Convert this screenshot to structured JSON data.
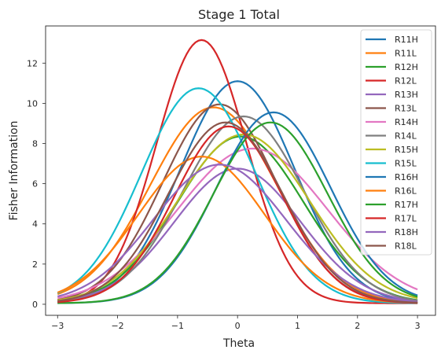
{
  "chart_data": {
    "type": "line",
    "title": "Stage 1 Total",
    "xlabel": "Theta",
    "ylabel": "Fisher Information",
    "xlim": [
      -3.2,
      3.3
    ],
    "ylim": [
      -0.55,
      13.85
    ],
    "xticks": [
      -3,
      -2,
      -1,
      0,
      1,
      2,
      3
    ],
    "yticks": [
      0,
      2,
      4,
      6,
      8,
      10,
      12
    ],
    "grid": false,
    "legend_position": "top-right",
    "x_range": [
      -3,
      3
    ],
    "series": [
      {
        "name": "R11H",
        "color": "#1f77b4",
        "peak": 11.05,
        "mu": 0.0,
        "sigma": 0.95
      },
      {
        "name": "R11L",
        "color": "#ff7f0e",
        "peak": 9.75,
        "mu": -0.4,
        "sigma": 1.05
      },
      {
        "name": "R12H",
        "color": "#2ca02c",
        "peak": 8.3,
        "mu": 0.05,
        "sigma": 1.05
      },
      {
        "name": "R12L",
        "color": "#d62728",
        "peak": 13.1,
        "mu": -0.6,
        "sigma": 0.75
      },
      {
        "name": "R13H",
        "color": "#9467bd",
        "peak": 6.7,
        "mu": 0.0,
        "sigma": 1.05
      },
      {
        "name": "R13L",
        "color": "#8c564b",
        "peak": 9.9,
        "mu": -0.3,
        "sigma": 0.95
      },
      {
        "name": "R14H",
        "color": "#e377c2",
        "peak": 7.7,
        "mu": 0.25,
        "sigma": 1.25
      },
      {
        "name": "R14L",
        "color": "#7f7f7f",
        "peak": 9.3,
        "mu": 0.1,
        "sigma": 1.0
      },
      {
        "name": "R15H",
        "color": "#bcbd22",
        "peak": 8.4,
        "mu": 0.1,
        "sigma": 1.1
      },
      {
        "name": "R15L",
        "color": "#17becf",
        "peak": 10.7,
        "mu": -0.65,
        "sigma": 0.95
      },
      {
        "name": "R16H",
        "color": "#1f77b4",
        "peak": 9.5,
        "mu": 0.6,
        "sigma": 0.95
      },
      {
        "name": "R16L",
        "color": "#ff7f0e",
        "peak": 7.3,
        "mu": -0.6,
        "sigma": 1.05
      },
      {
        "name": "R17H",
        "color": "#2ca02c",
        "peak": 9.0,
        "mu": 0.55,
        "sigma": 0.95
      },
      {
        "name": "R17L",
        "color": "#d62728",
        "peak": 8.8,
        "mu": -0.15,
        "sigma": 0.9
      },
      {
        "name": "R18H",
        "color": "#9467bd",
        "peak": 6.9,
        "mu": -0.3,
        "sigma": 1.1
      },
      {
        "name": "R18L",
        "color": "#8c564b",
        "peak": 9.0,
        "mu": -0.2,
        "sigma": 0.95
      }
    ]
  }
}
